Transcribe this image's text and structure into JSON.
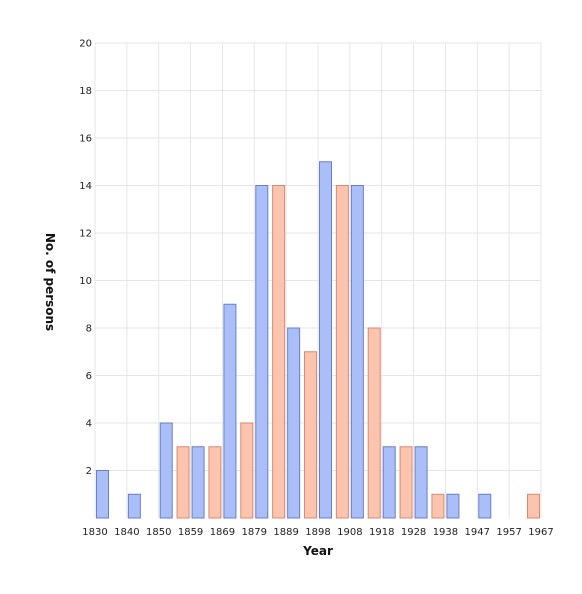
{
  "chart_data": {
    "type": "bar",
    "title": "",
    "xlabel": "Year",
    "ylabel": "No. of persons",
    "ylim": [
      0,
      20
    ],
    "yticks": [
      2,
      4,
      6,
      8,
      10,
      12,
      14,
      16,
      18,
      20
    ],
    "x_tick_labels": [
      "1830",
      "1840",
      "1850",
      "1859",
      "1869",
      "1879",
      "1889",
      "1898",
      "1908",
      "1918",
      "1928",
      "1938",
      "1947",
      "1957",
      "1967"
    ],
    "grid": true,
    "legend": "none",
    "series": [
      {
        "color": "#aabff7",
        "stroke": "#6a7fc8",
        "values": [
          2,
          1,
          4,
          3,
          9,
          14,
          8,
          15,
          14,
          3,
          3,
          1,
          1,
          0
        ]
      },
      {
        "color": "#fbc4ae",
        "stroke": "#d98a70",
        "values": [
          0,
          0,
          3,
          3,
          4,
          14,
          7,
          14,
          8,
          3,
          1,
          0,
          0,
          1
        ]
      }
    ]
  }
}
